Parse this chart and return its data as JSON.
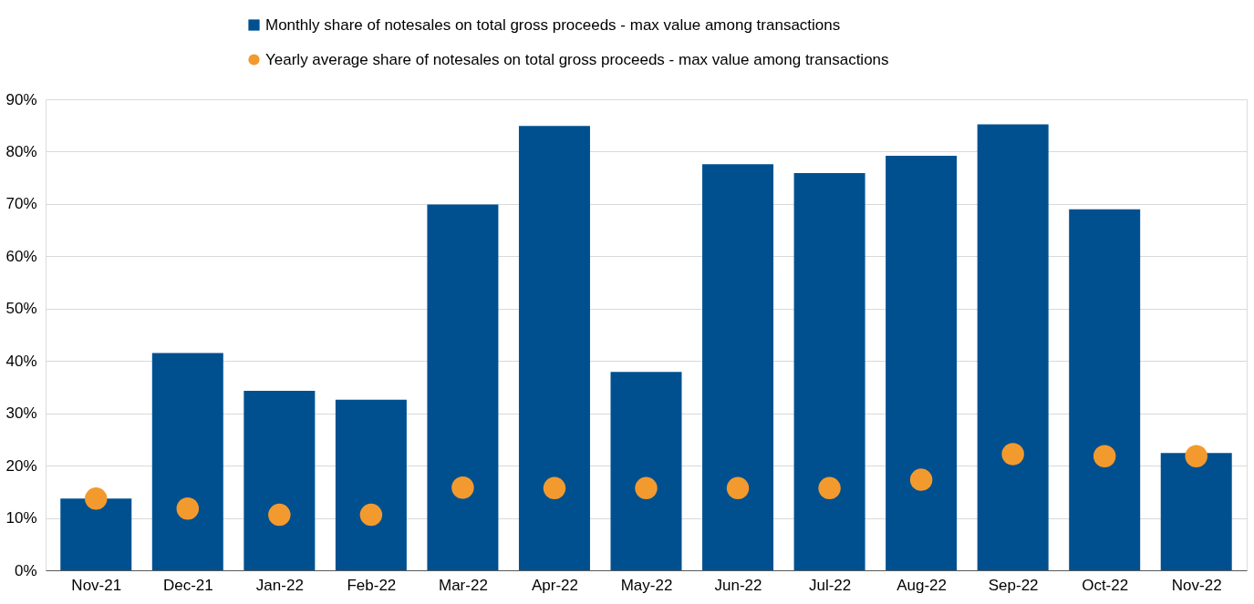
{
  "chart_data": {
    "type": "bar",
    "categories": [
      "Nov-21",
      "Dec-21",
      "Jan-22",
      "Feb-22",
      "Mar-22",
      "Apr-22",
      "May-22",
      "Jun-22",
      "Jul-22",
      "Aug-22",
      "Sep-22",
      "Oct-22",
      "Nov-22"
    ],
    "series": [
      {
        "name": "Monthly share of notesales on total gross proceeds - max value among transactions",
        "color": "#00508f",
        "values": [
          13.7,
          41.5,
          34.3,
          32.6,
          69.9,
          84.9,
          37.9,
          77.6,
          75.9,
          79.2,
          85.2,
          69.0,
          22.4
        ]
      },
      {
        "name": "Yearly average share of notesales on total gross proceeds - max value among transactions",
        "type": "scatter",
        "marker": "circle",
        "color": "#f39a2e",
        "values": [
          13.7,
          11.8,
          10.6,
          10.6,
          15.8,
          15.7,
          15.7,
          15.7,
          15.7,
          17.3,
          22.2,
          21.8,
          21.8
        ]
      }
    ],
    "ylim": [
      0,
      90
    ],
    "yticks": [
      {
        "value": 0,
        "label": "0%"
      },
      {
        "value": 10,
        "label": "10%"
      },
      {
        "value": 20,
        "label": "20%"
      },
      {
        "value": 30,
        "label": "30%"
      },
      {
        "value": 40,
        "label": "40%"
      },
      {
        "value": 50,
        "label": "50%"
      },
      {
        "value": 60,
        "label": "60%"
      },
      {
        "value": 70,
        "label": "70%"
      },
      {
        "value": 80,
        "label": "80%"
      },
      {
        "value": 90,
        "label": "90%"
      }
    ],
    "grid": "y",
    "legend": "top"
  }
}
